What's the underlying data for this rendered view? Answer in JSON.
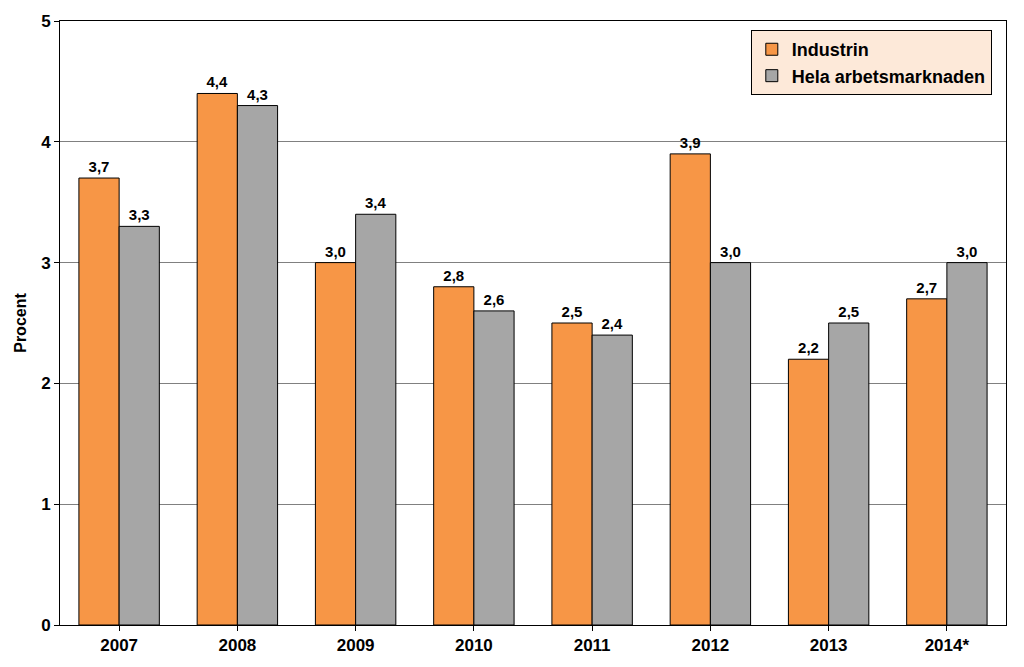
{
  "chart_data": {
    "type": "bar",
    "y_label": "Procent",
    "categories": [
      "2007",
      "2008",
      "2009",
      "2010",
      "2011",
      "2012",
      "2013",
      "2014*"
    ],
    "series": [
      {
        "name": "Industrin",
        "color": "#f79646",
        "values": [
          3.7,
          4.4,
          3.0,
          2.8,
          2.5,
          3.9,
          2.2,
          2.7
        ],
        "value_labels": [
          "3,7",
          "4,4",
          "3,0",
          "2,8",
          "2,5",
          "3,9",
          "2,2",
          "2,7"
        ]
      },
      {
        "name": "Hela arbetsmarknaden",
        "color": "#a6a6a6",
        "values": [
          3.3,
          4.3,
          3.4,
          2.6,
          2.4,
          3.0,
          2.5,
          3.0
        ],
        "value_labels": [
          "3,3",
          "4,3",
          "3,4",
          "2,6",
          "2,4",
          "3,0",
          "2,5",
          "3,0"
        ]
      }
    ],
    "ylim": [
      0,
      5
    ],
    "yticks": [
      0,
      1,
      2,
      3,
      4,
      5
    ],
    "grid": true,
    "legend": "upper right",
    "data_labels": true
  }
}
